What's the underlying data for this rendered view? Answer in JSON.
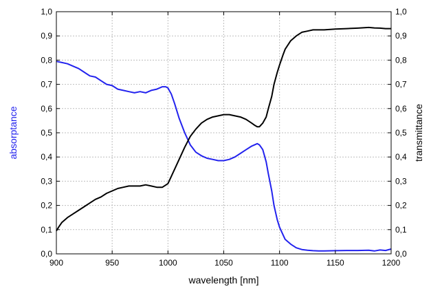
{
  "chart_data": {
    "type": "line",
    "title": "",
    "xlabel": "wavelength [nm]",
    "ylabel_left": "absorptance",
    "ylabel_right": "transmittance",
    "xlim": [
      900,
      1200
    ],
    "ylim_left": [
      0.0,
      1.0
    ],
    "ylim_right": [
      0.0,
      1.0
    ],
    "x_ticks": [
      "900",
      "950",
      "1000",
      "1050",
      "1100",
      "1150",
      "1200"
    ],
    "y_ticks": [
      "0,0",
      "0,1",
      "0,2",
      "0,3",
      "0,4",
      "0,5",
      "0,6",
      "0,7",
      "0,8",
      "0,9",
      "1,0"
    ],
    "grid": true,
    "colors": {
      "absorptance": "#2222ee",
      "transmittance": "#000000",
      "left_axis_label": "#2222ee",
      "grid": "#bdbdbd"
    },
    "series": [
      {
        "name": "absorptance",
        "axis": "left",
        "color": "#2222ee",
        "x": [
          900,
          905,
          910,
          915,
          920,
          925,
          930,
          935,
          940,
          945,
          950,
          955,
          960,
          965,
          970,
          975,
          980,
          985,
          990,
          995,
          998,
          1000,
          1003,
          1006,
          1010,
          1015,
          1020,
          1025,
          1030,
          1035,
          1040,
          1045,
          1050,
          1055,
          1060,
          1065,
          1070,
          1075,
          1080,
          1082,
          1085,
          1088,
          1090,
          1093,
          1095,
          1098,
          1100,
          1103,
          1105,
          1110,
          1115,
          1120,
          1125,
          1130,
          1135,
          1140,
          1150,
          1160,
          1170,
          1180,
          1185,
          1190,
          1195,
          1200
        ],
        "y": [
          0.795,
          0.79,
          0.785,
          0.775,
          0.765,
          0.75,
          0.735,
          0.73,
          0.715,
          0.7,
          0.695,
          0.68,
          0.675,
          0.67,
          0.665,
          0.67,
          0.665,
          0.675,
          0.68,
          0.69,
          0.69,
          0.685,
          0.66,
          0.62,
          0.56,
          0.5,
          0.45,
          0.42,
          0.405,
          0.395,
          0.39,
          0.385,
          0.385,
          0.39,
          0.4,
          0.415,
          0.43,
          0.445,
          0.455,
          0.45,
          0.43,
          0.38,
          0.33,
          0.26,
          0.2,
          0.14,
          0.11,
          0.08,
          0.06,
          0.04,
          0.025,
          0.018,
          0.015,
          0.013,
          0.012,
          0.012,
          0.013,
          0.014,
          0.014,
          0.015,
          0.012,
          0.016,
          0.014,
          0.02
        ]
      },
      {
        "name": "transmittance",
        "axis": "right",
        "color": "#000000",
        "x": [
          900,
          902,
          905,
          910,
          915,
          920,
          925,
          930,
          935,
          940,
          945,
          950,
          955,
          960,
          965,
          970,
          975,
          980,
          985,
          990,
          995,
          1000,
          1003,
          1006,
          1010,
          1015,
          1020,
          1025,
          1030,
          1035,
          1040,
          1045,
          1050,
          1055,
          1060,
          1065,
          1070,
          1075,
          1078,
          1080,
          1082,
          1085,
          1088,
          1090,
          1093,
          1095,
          1098,
          1100,
          1103,
          1105,
          1110,
          1115,
          1120,
          1125,
          1130,
          1140,
          1150,
          1160,
          1170,
          1180,
          1185,
          1190,
          1195,
          1200
        ],
        "y": [
          0.095,
          0.11,
          0.13,
          0.15,
          0.165,
          0.18,
          0.195,
          0.21,
          0.225,
          0.235,
          0.25,
          0.26,
          0.27,
          0.275,
          0.28,
          0.28,
          0.28,
          0.285,
          0.28,
          0.275,
          0.275,
          0.29,
          0.32,
          0.35,
          0.39,
          0.44,
          0.485,
          0.515,
          0.54,
          0.555,
          0.565,
          0.57,
          0.575,
          0.575,
          0.57,
          0.565,
          0.555,
          0.54,
          0.53,
          0.525,
          0.525,
          0.54,
          0.565,
          0.6,
          0.65,
          0.7,
          0.75,
          0.78,
          0.82,
          0.845,
          0.88,
          0.9,
          0.915,
          0.92,
          0.925,
          0.925,
          0.928,
          0.93,
          0.932,
          0.935,
          0.933,
          0.932,
          0.93,
          0.93
        ]
      }
    ]
  }
}
